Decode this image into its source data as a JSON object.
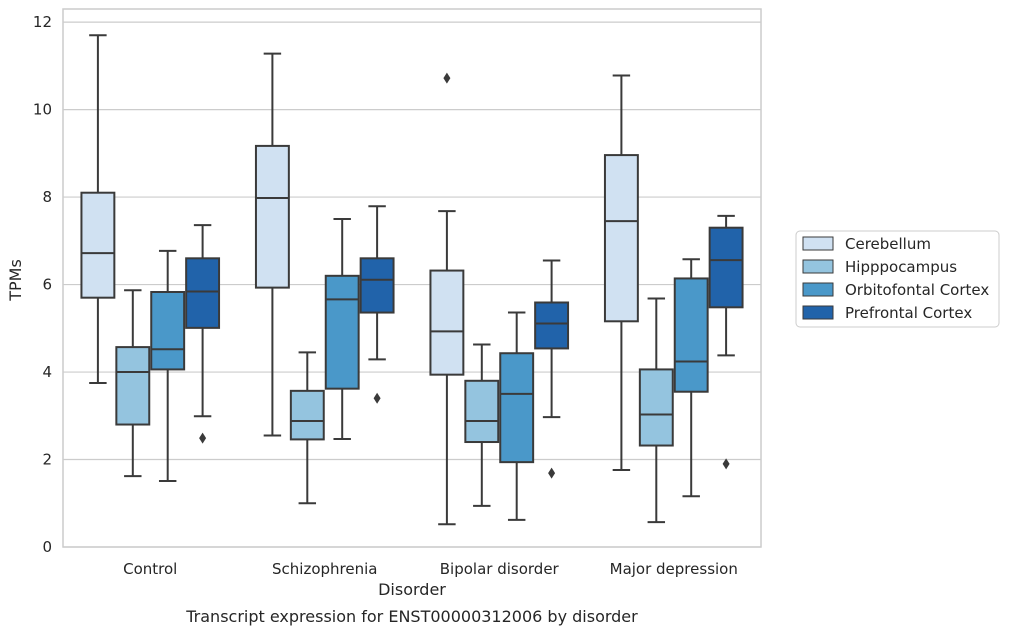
{
  "chart_data": {
    "type": "box",
    "caption": "Transcript expression for ENST00000312006 by disorder",
    "xlabel": "Disorder",
    "ylabel": "TPMs",
    "ylim": [
      0,
      12.3
    ],
    "yticks": [
      0,
      2,
      4,
      6,
      8,
      10,
      12
    ],
    "grid": true,
    "legend_position": "right",
    "categories": [
      "Control",
      "Schizophrenia",
      "Bipolar disorder",
      "Major depression"
    ],
    "series": [
      {
        "name": "Cerebellum",
        "color": "#d0e1f2",
        "boxes": [
          {
            "whislo": 3.75,
            "q1": 5.7,
            "med": 6.72,
            "q3": 8.1,
            "whishi": 11.7,
            "fliers": []
          },
          {
            "whislo": 2.55,
            "q1": 5.93,
            "med": 7.98,
            "q3": 9.17,
            "whishi": 11.28,
            "fliers": []
          },
          {
            "whislo": 0.52,
            "q1": 3.94,
            "med": 4.93,
            "q3": 6.32,
            "whishi": 7.68,
            "fliers": [
              10.72
            ]
          },
          {
            "whislo": 1.76,
            "q1": 5.16,
            "med": 7.45,
            "q3": 8.96,
            "whishi": 10.78,
            "fliers": []
          }
        ]
      },
      {
        "name": "Hipppocampus",
        "color": "#94c4df",
        "boxes": [
          {
            "whislo": 1.62,
            "q1": 2.8,
            "med": 4.0,
            "q3": 4.57,
            "whishi": 5.87,
            "fliers": []
          },
          {
            "whislo": 1.0,
            "q1": 2.46,
            "med": 2.88,
            "q3": 3.57,
            "whishi": 4.45,
            "fliers": []
          },
          {
            "whislo": 0.94,
            "q1": 2.4,
            "med": 2.88,
            "q3": 3.8,
            "whishi": 4.63,
            "fliers": []
          },
          {
            "whislo": 0.57,
            "q1": 2.32,
            "med": 3.03,
            "q3": 4.06,
            "whishi": 5.68,
            "fliers": []
          }
        ]
      },
      {
        "name": "Orbitofontal Cortex",
        "color": "#4a98c9",
        "boxes": [
          {
            "whislo": 1.51,
            "q1": 4.06,
            "med": 4.52,
            "q3": 5.83,
            "whishi": 6.77,
            "fliers": []
          },
          {
            "whislo": 2.47,
            "q1": 3.62,
            "med": 5.66,
            "q3": 6.2,
            "whishi": 7.5,
            "fliers": []
          },
          {
            "whislo": 0.62,
            "q1": 1.94,
            "med": 3.5,
            "q3": 4.43,
            "whishi": 5.36,
            "fliers": []
          },
          {
            "whislo": 1.16,
            "q1": 3.55,
            "med": 4.24,
            "q3": 6.14,
            "whishi": 6.58,
            "fliers": []
          }
        ]
      },
      {
        "name": "Prefrontal Cortex",
        "color": "#2163aa",
        "boxes": [
          {
            "whislo": 2.99,
            "q1": 5.01,
            "med": 5.84,
            "q3": 6.6,
            "whishi": 7.36,
            "fliers": [
              2.49
            ]
          },
          {
            "whislo": 4.29,
            "q1": 5.36,
            "med": 6.11,
            "q3": 6.6,
            "whishi": 7.79,
            "fliers": [
              3.4
            ]
          },
          {
            "whislo": 2.97,
            "q1": 4.54,
            "med": 5.11,
            "q3": 5.59,
            "whishi": 6.55,
            "fliers": [
              1.69
            ]
          },
          {
            "whislo": 4.38,
            "q1": 5.48,
            "med": 6.56,
            "q3": 7.3,
            "whishi": 7.57,
            "fliers": [
              1.9
            ]
          }
        ]
      }
    ]
  }
}
